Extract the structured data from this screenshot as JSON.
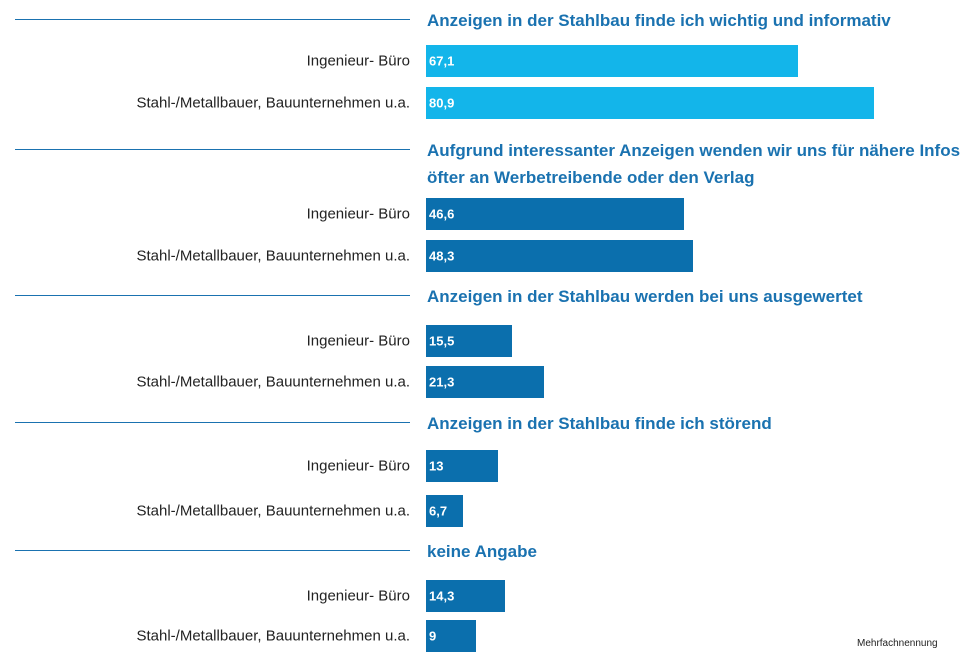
{
  "chart_data": {
    "type": "bar",
    "orientation": "horizontal",
    "groups": [
      {
        "title": "Anzeigen in der Stahlbau finde ich wichtig und informativ",
        "color": "#13b5ea",
        "categories": [
          "Ingenieur- Büro",
          "Stahl-/Metallbauer, Bauunternehmen u.a."
        ],
        "values": [
          67.1,
          80.9
        ],
        "value_labels": [
          "67,1",
          "80,9"
        ]
      },
      {
        "title": "Aufgrund interessanter Anzeigen wenden wir uns für nähere Infos öfter an Werbetreibende oder den Verlag",
        "color": "#0b6fad",
        "categories": [
          "Ingenieur- Büro",
          "Stahl-/Metallbauer, Bauunternehmen u.a."
        ],
        "values": [
          46.6,
          48.3
        ],
        "value_labels": [
          "46,6",
          "48,3"
        ]
      },
      {
        "title": "Anzeigen in der Stahlbau werden bei uns ausgewertet",
        "color": "#0b6fad",
        "categories": [
          "Ingenieur- Büro",
          "Stahl-/Metallbauer, Bauunternehmen u.a."
        ],
        "values": [
          15.5,
          21.3
        ],
        "value_labels": [
          "15,5",
          "21,3"
        ]
      },
      {
        "title": "Anzeigen in der Stahlbau finde ich störend",
        "color": "#0b6fad",
        "categories": [
          "Ingenieur- Büro",
          "Stahl-/Metallbauer, Bauunternehmen u.a."
        ],
        "values": [
          13,
          6.7
        ],
        "value_labels": [
          "13",
          "6,7"
        ]
      },
      {
        "title": "keine Angabe",
        "color": "#0b6fad",
        "categories": [
          "Ingenieur- Büro",
          "Stahl-/Metallbauer, Bauunternehmen u.a."
        ],
        "values": [
          14.3,
          9
        ],
        "value_labels": [
          "14,3",
          "9"
        ]
      }
    ],
    "note": "Mehrfachnennung"
  }
}
